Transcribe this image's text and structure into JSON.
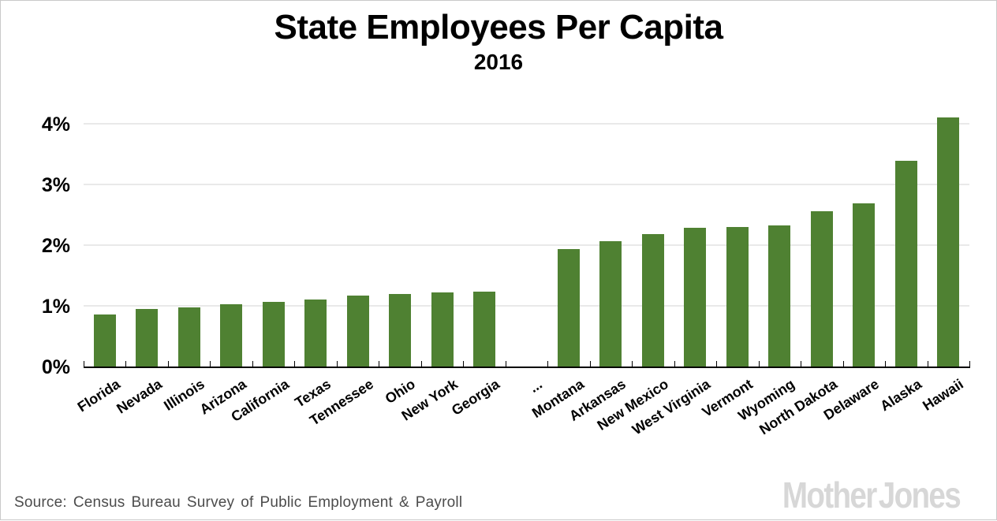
{
  "header": {
    "title": "State Employees Per Capita",
    "subtitle": "2016"
  },
  "footer": {
    "source_text": "Source: Census Bureau Survey of Public Employment & Payroll",
    "logo_text": "Mother Jones"
  },
  "colors": {
    "bar_green": "#4F8132",
    "gridline_gray": "#e9e9e9",
    "axis_black": "#000000",
    "source_gray": "#4c4c4c",
    "logo_gray": "#d7d7d7",
    "border_gray": "#c9c9c9"
  },
  "chart_data": {
    "type": "bar",
    "title": "State Employees Per Capita",
    "subtitle": "2016",
    "xlabel": "",
    "ylabel": "",
    "categories": [
      "Florida",
      "Nevada",
      "Illinois",
      "Arizona",
      "California",
      "Texas",
      "Tennessee",
      "Ohio",
      "New York",
      "Georgia",
      "...",
      "Montana",
      "Arkansas",
      "New Mexico",
      "West Virginia",
      "Vermont",
      "Wyoming",
      "North Dakota",
      "Delaware",
      "Alaska",
      "Hawaii"
    ],
    "values": [
      0.86,
      0.95,
      0.97,
      1.03,
      1.06,
      1.1,
      1.17,
      1.19,
      1.22,
      1.24,
      null,
      1.94,
      2.07,
      2.18,
      2.28,
      2.3,
      2.33,
      2.56,
      2.69,
      3.39,
      4.1
    ],
    "value_unit": "%",
    "ylim": [
      0,
      4.2
    ],
    "ytick_values": [
      0,
      1,
      2,
      3,
      4
    ],
    "ytick_labels": [
      "0%",
      "1%",
      "2%",
      "3%",
      "4%"
    ],
    "grid": true,
    "legend": false,
    "bar_color": "#4F8132",
    "note": "gap category '...' has no bar"
  }
}
